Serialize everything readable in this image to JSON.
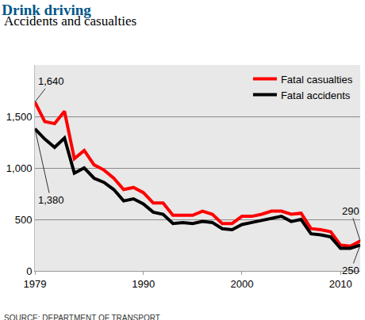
{
  "chart_data": {
    "type": "line",
    "title": "Drink driving",
    "subtitle": "Accidents and casualties",
    "source": "SOURCE: DEPARTMENT OF TRANSPORT",
    "x": [
      1979,
      1980,
      1981,
      1982,
      1983,
      1984,
      1985,
      1986,
      1987,
      1988,
      1989,
      1990,
      1991,
      1992,
      1993,
      1994,
      1995,
      1996,
      1997,
      1998,
      1999,
      2000,
      2001,
      2002,
      2003,
      2004,
      2005,
      2006,
      2007,
      2008,
      2009,
      2010,
      2011,
      2012
    ],
    "series": [
      {
        "name": "Fatal casualties",
        "color": "#ff0000",
        "values": [
          1640,
          1450,
          1430,
          1550,
          1090,
          1170,
          1030,
          980,
          900,
          790,
          810,
          760,
          660,
          660,
          540,
          540,
          540,
          580,
          550,
          460,
          460,
          530,
          530,
          550,
          580,
          580,
          550,
          560,
          410,
          400,
          380,
          250,
          240,
          290
        ]
      },
      {
        "name": "Fatal accidents",
        "color": "#000000",
        "values": [
          1380,
          1280,
          1200,
          1290,
          950,
          1000,
          900,
          860,
          790,
          680,
          700,
          650,
          570,
          550,
          460,
          470,
          460,
          480,
          470,
          410,
          400,
          450,
          470,
          490,
          510,
          530,
          480,
          500,
          360,
          350,
          330,
          220,
          220,
          250
        ]
      }
    ],
    "xlim": [
      1979,
      2012
    ],
    "xticks": [
      1979,
      1990,
      2000,
      2010
    ],
    "ylim": [
      0,
      2000
    ],
    "yticks": [
      0,
      500,
      {
        "value": 1000,
        "label": "1,000"
      },
      {
        "value": 1500,
        "label": "1,500"
      }
    ],
    "grid": true,
    "legend": "top right",
    "annotations": [
      {
        "text": "1,640",
        "x": 1979,
        "y": 1640
      },
      {
        "text": "1,380",
        "x": 1979,
        "y": 1380
      },
      {
        "text": "290",
        "x": 2012,
        "y": 290
      },
      {
        "text": "250",
        "x": 2012,
        "y": 250
      }
    ]
  }
}
